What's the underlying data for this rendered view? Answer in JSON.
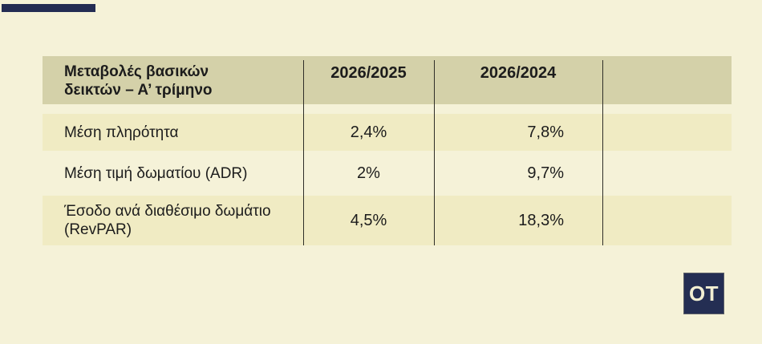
{
  "colors": {
    "page_background": "#f5f2d8",
    "header_band": "#d4d1a9",
    "row_highlight": "#f0ebc3",
    "accent_navy": "#232c53",
    "divider_line": "#2f2e28",
    "text": "#1c1c1c",
    "logo_text_color": "#f2efd2"
  },
  "chart_data": {
    "type": "table",
    "title": "Μεταβολές βασικών δεικτών – Α’ τρίμηνο",
    "title_lines": [
      "Μεταβολές βασικών",
      "δεικτών – Α’ τρίμηνο"
    ],
    "columns": [
      "2026/2025",
      "2026/2024"
    ],
    "rows": [
      {
        "label": "Μέση πληρότητα",
        "values": [
          "2,4%",
          "7,8%"
        ]
      },
      {
        "label": "Μέση τιμή δωματίου (ADR)",
        "values": [
          "2%",
          "9,7%"
        ]
      },
      {
        "label": "Έσοδο ανά διαθέσιμο δωμάτιο (RevPAR)",
        "values": [
          "4,5%",
          "18,3%"
        ]
      }
    ],
    "layout_hints": {
      "grid": "off",
      "column_dividers": "vertical thin black lines",
      "empty_fourth_column": true
    }
  },
  "branding": {
    "logo_text": "OT"
  }
}
